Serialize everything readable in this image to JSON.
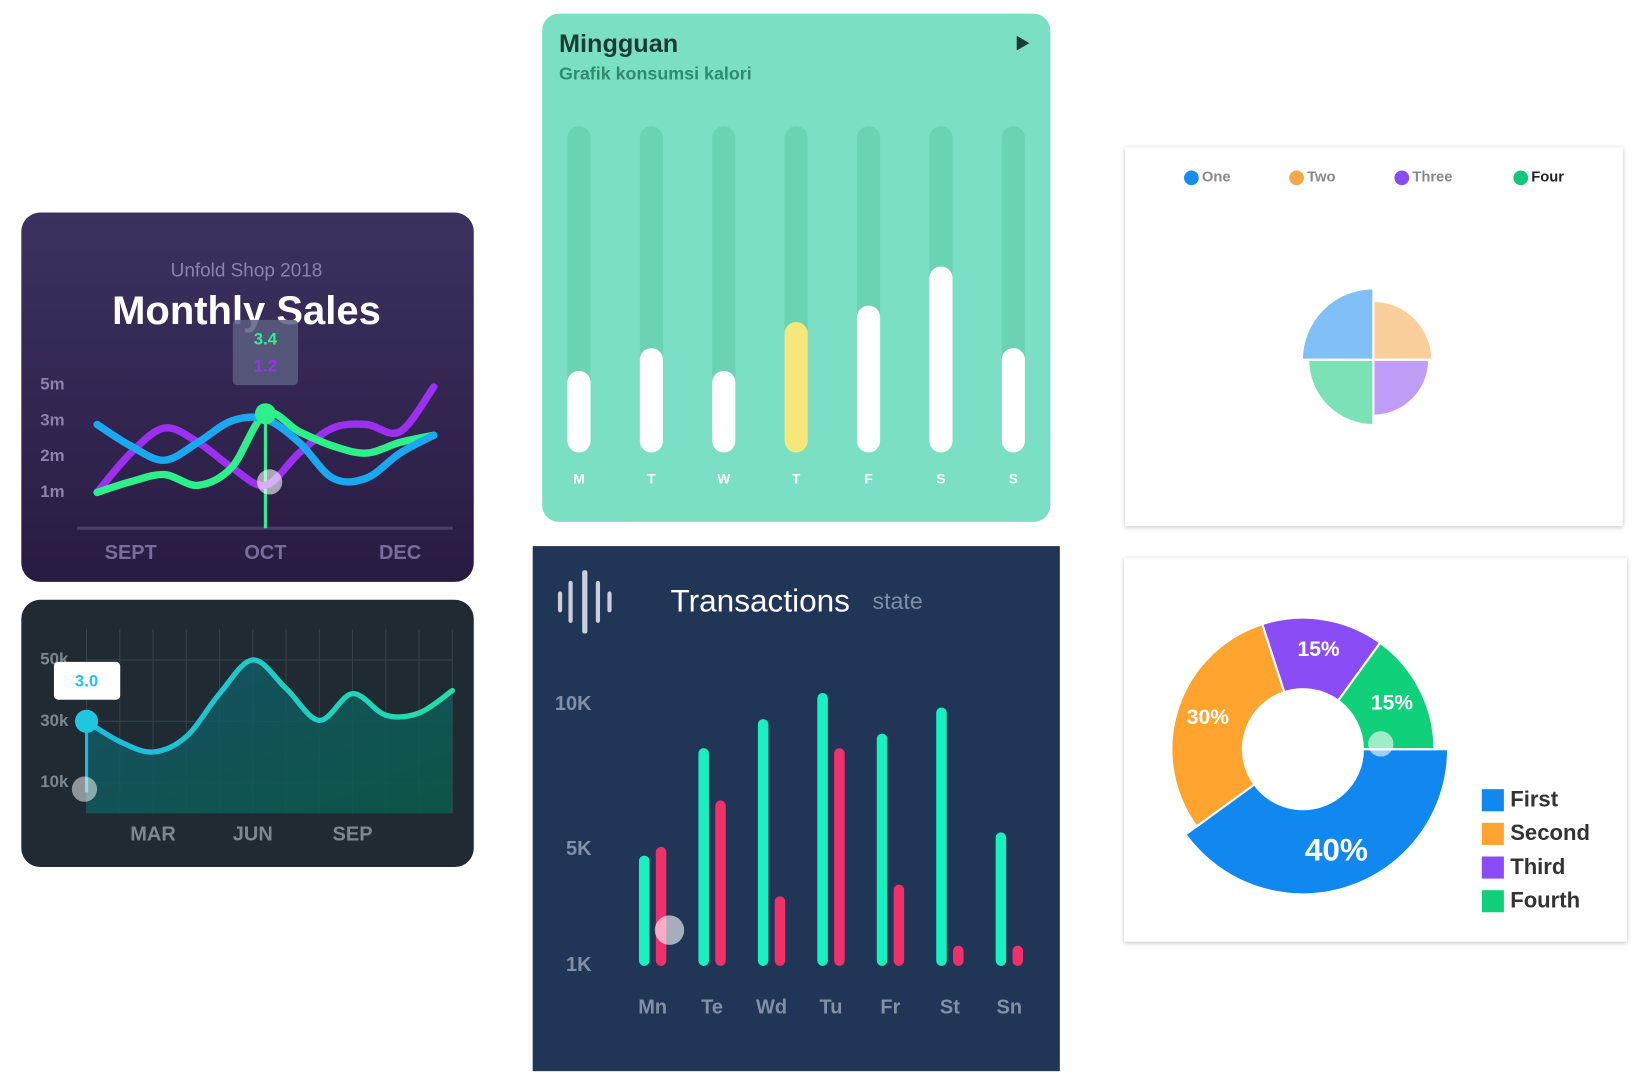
{
  "chart_data": [
    {
      "type": "line",
      "subtitle": "Unfold Shop 2018",
      "title": "Monthly Sales",
      "categories": [
        null,
        "SEPT",
        null,
        null,
        null,
        "OCT",
        null,
        null,
        null,
        "DEC",
        null
      ],
      "series": [
        {
          "color": "#9b30f0",
          "values": [
            1.0,
            2.1,
            2.8,
            2.4,
            1.7,
            1.2,
            2.1,
            2.8,
            2.9,
            2.7,
            4.9
          ]
        },
        {
          "color": "#2ef08a",
          "values": [
            1.0,
            1.3,
            1.5,
            1.2,
            1.7,
            3.4,
            2.7,
            2.3,
            2.1,
            2.4,
            2.6
          ]
        },
        {
          "color": "#1aa8f0",
          "values": [
            2.9,
            2.3,
            1.9,
            2.4,
            3.0,
            3.1,
            2.4,
            1.4,
            1.4,
            2.1,
            2.6
          ]
        }
      ],
      "ylim": [
        0,
        6
      ],
      "yticks": [
        {
          "value": 1,
          "label": "1m"
        },
        {
          "value": 2,
          "label": "2m"
        },
        {
          "value": 3,
          "label": "3m"
        },
        {
          "value": 5,
          "label": "5m"
        }
      ],
      "tooltip": [
        "3.4",
        "1.2"
      ]
    },
    {
      "type": "area",
      "categories": [
        null,
        null,
        "MAR",
        null,
        null,
        "JUN",
        null,
        null,
        "SEP",
        null,
        null,
        null
      ],
      "values": [
        30000,
        23400,
        20000,
        25000,
        39000,
        50000,
        40700,
        30300,
        39000,
        32000,
        32700,
        40000
      ],
      "color": "#1fc8e0",
      "ylim": [
        0,
        60000
      ],
      "yticks": [
        {
          "value": 10000,
          "label": "10k"
        },
        {
          "value": 30000,
          "label": "30k"
        },
        {
          "value": 50000,
          "label": "50k"
        }
      ],
      "grid": true,
      "tooltip": "3.0"
    },
    {
      "type": "bar",
      "title": "Mingguan",
      "subtitle": "Grafik konsumsi kalori",
      "categories": [
        "M",
        "T",
        "W",
        "T",
        "F",
        "S",
        "S"
      ],
      "values": [
        25,
        32,
        25,
        40,
        45,
        57,
        32
      ],
      "colors": [
        "#ffffff",
        "#ffffff",
        "#ffffff",
        "#f5e77a",
        "#ffffff",
        "#ffffff",
        "#ffffff"
      ],
      "ylim": [
        0,
        100
      ]
    },
    {
      "type": "bar",
      "title": "Transactions",
      "subtitle": "state",
      "categories": [
        "Mn",
        "Te",
        "Wd",
        "Tu",
        "Fr",
        "St",
        "Sn"
      ],
      "series": [
        {
          "color": "#19f0c0",
          "values": [
            4800,
            8500,
            9500,
            10400,
            9000,
            9900,
            5600
          ]
        },
        {
          "color": "#f0306a",
          "values": [
            5100,
            6700,
            3400,
            8500,
            3800,
            1700,
            1700
          ]
        }
      ],
      "ylim": [
        1000,
        11000
      ],
      "yticks": [
        {
          "value": 1000,
          "label": "1K"
        },
        {
          "value": 5000,
          "label": "5K"
        },
        {
          "value": 10000,
          "label": "10K"
        }
      ]
    },
    {
      "type": "polar",
      "categories": [
        "One",
        "Two",
        "Three",
        "Four"
      ],
      "values": [
        68,
        56,
        53,
        62
      ],
      "colors": [
        "#1a8cf0",
        "#f5a84a",
        "#8a4cf0",
        "#10c878"
      ]
    },
    {
      "type": "donut",
      "categories": [
        "First",
        "Second",
        "Third",
        "Fourth"
      ],
      "values": [
        40,
        30,
        15,
        15
      ],
      "value_labels": [
        "40%",
        "30%",
        "15%",
        "15%"
      ],
      "colors": [
        "#1088f0",
        "#ffa42e",
        "#8a4cf5",
        "#10d07a"
      ]
    }
  ]
}
